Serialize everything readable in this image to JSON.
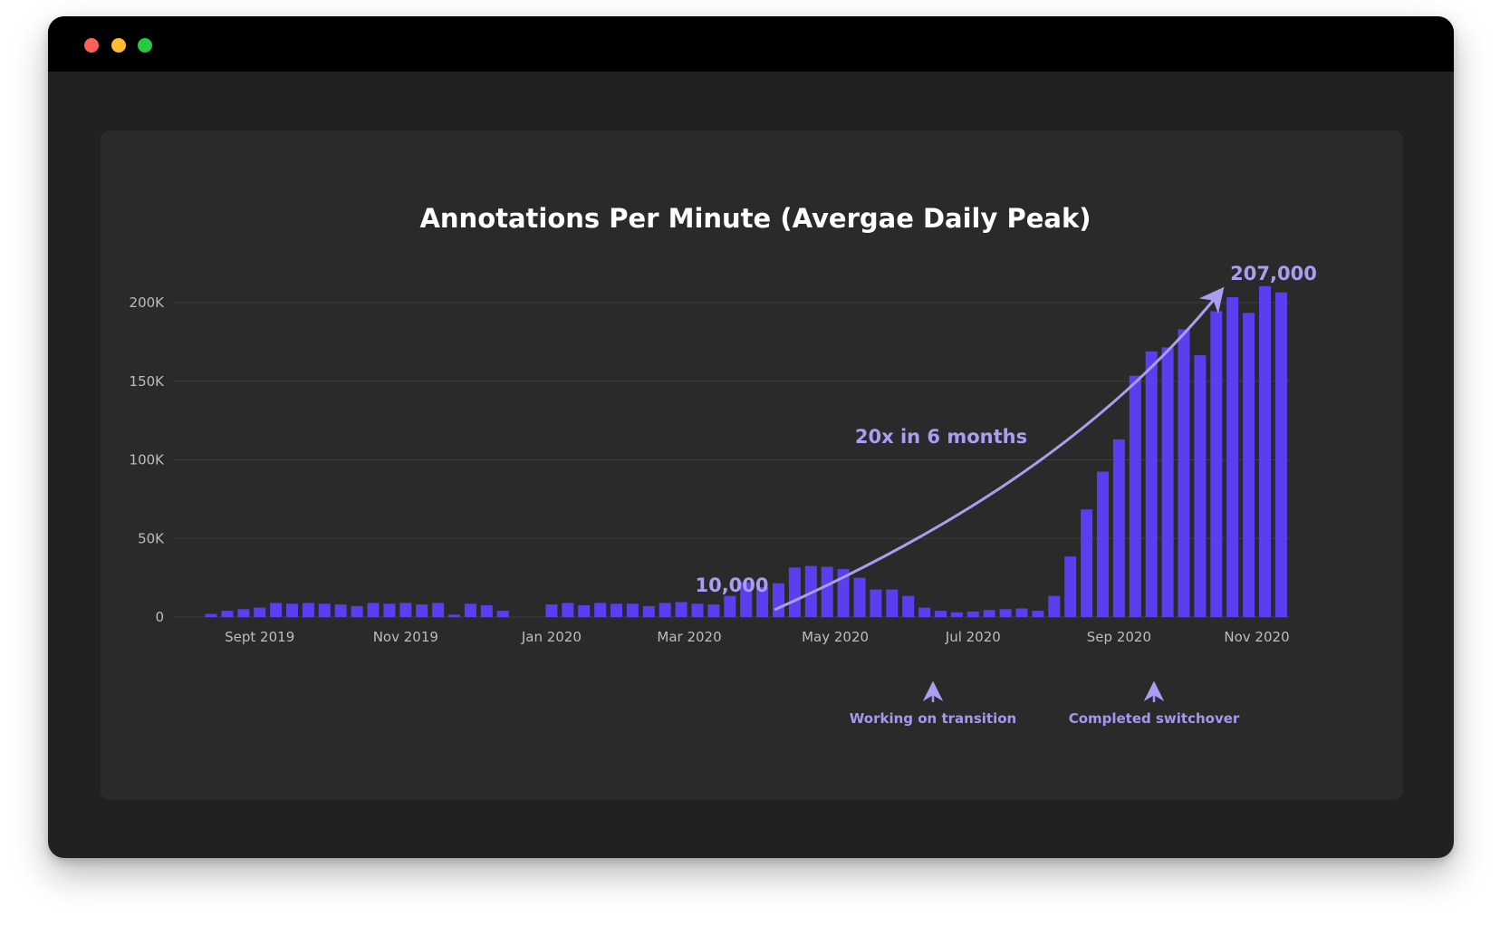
{
  "window": {
    "controls": {
      "close_color": "#fe5f57",
      "minimize_color": "#febc2e",
      "zoom_color": "#28c840"
    }
  },
  "colors": {
    "bar": "#5a3ff0",
    "annotation": "#ad9cf2",
    "background": "#2a2a2a"
  },
  "chart_data": {
    "type": "bar",
    "title": "Annotations Per Minute (Avergae Daily Peak)",
    "xlabel": "",
    "ylabel": "",
    "ylim": [
      0,
      200000
    ],
    "yticks": [
      {
        "value": 0,
        "label": "0"
      },
      {
        "value": 50000,
        "label": "50K"
      },
      {
        "value": 100000,
        "label": "100K"
      },
      {
        "value": 150000,
        "label": "150K"
      },
      {
        "value": 200000,
        "label": "200K"
      }
    ],
    "xticks": [
      {
        "label": "Sept 2019",
        "bar_index": 3
      },
      {
        "label": "Nov 2019",
        "bar_index": 12
      },
      {
        "label": "Jan 2020",
        "bar_index": 21
      },
      {
        "label": "Mar 2020",
        "bar_index": 29.5
      },
      {
        "label": "May 2020",
        "bar_index": 38.5
      },
      {
        "label": "Jul 2020",
        "bar_index": 47
      },
      {
        "label": "Sep 2020",
        "bar_index": 56
      },
      {
        "label": "Nov 2020",
        "bar_index": 64.5
      }
    ],
    "grid": true,
    "values": [
      2000,
      4000,
      5000,
      6000,
      9000,
      8500,
      9000,
      8500,
      8000,
      7000,
      9000,
      8500,
      9000,
      8000,
      9000,
      1500,
      8500,
      7500,
      4000,
      0,
      0,
      8000,
      9000,
      7500,
      9000,
      8500,
      8500,
      7000,
      9000,
      9500,
      8500,
      8000,
      13500,
      22000,
      19000,
      21500,
      31500,
      32500,
      32000,
      30500,
      25000,
      17500,
      17500,
      13500,
      6000,
      4000,
      3000,
      3500,
      4500,
      5000,
      5500,
      4000,
      13500,
      38500,
      68500,
      92500,
      113000,
      153500,
      169000,
      171500,
      183000,
      166500,
      194500,
      203500,
      193500,
      210500,
      206500
    ],
    "annotations": {
      "start_value": "10,000",
      "end_value": "207,000",
      "growth": "20x in 6 months",
      "transition": "Working on transition",
      "switchover": "Completed switchover"
    }
  }
}
